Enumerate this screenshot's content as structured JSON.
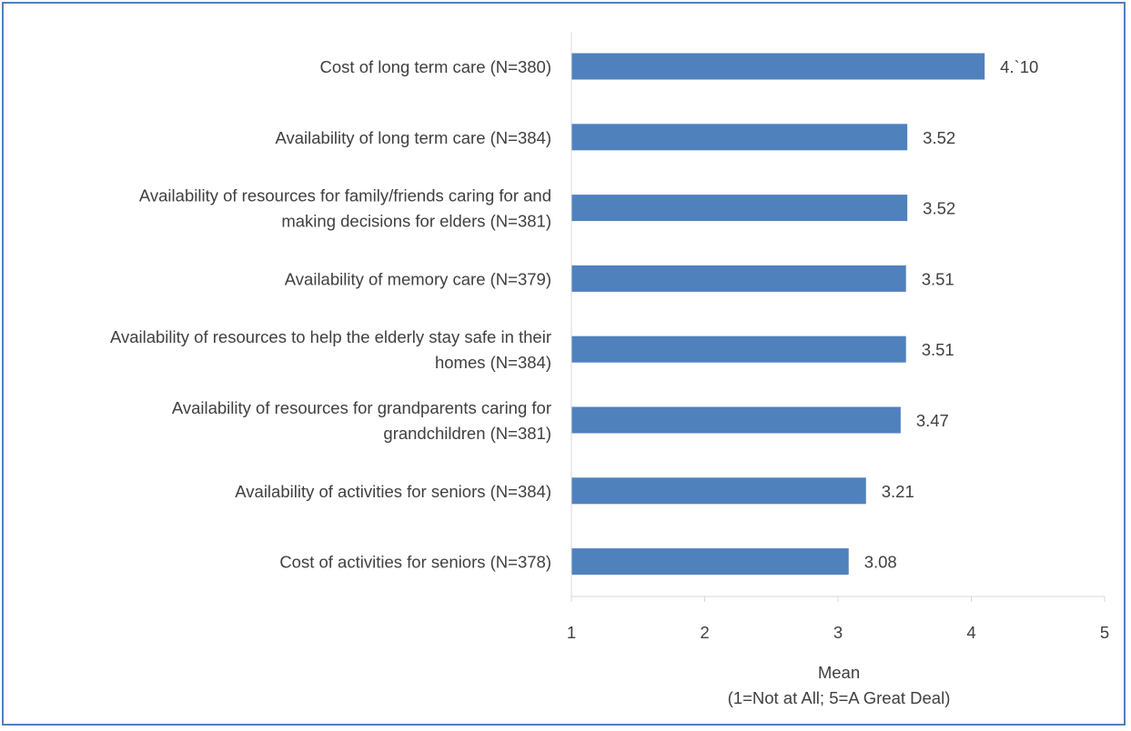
{
  "chart_data": {
    "type": "bar",
    "orientation": "horizontal",
    "categories": [
      [
        "Cost of long term care (N=380)"
      ],
      [
        "Availability of long term care (N=384)"
      ],
      [
        "Availability of resources for family/friends caring for and",
        "making decisions for elders (N=381)"
      ],
      [
        "Availability of memory care (N=379)"
      ],
      [
        "Availability of resources to help the elderly stay safe in their",
        "homes (N=384)"
      ],
      [
        "Availability of resources for grandparents caring for",
        "grandchildren (N=381)"
      ],
      [
        "Availability of activities for seniors (N=384)"
      ],
      [
        "Cost of activities for seniors (N=378)"
      ]
    ],
    "values": [
      4.1,
      3.52,
      3.52,
      3.51,
      3.51,
      3.47,
      3.21,
      3.08
    ],
    "data_labels": [
      "4.`10",
      "3.52",
      "3.52",
      "3.51",
      "3.51",
      "3.47",
      "3.21",
      "3.08"
    ],
    "xlim": [
      1,
      5
    ],
    "xticks": [
      "1",
      "2",
      "3",
      "4",
      "5"
    ],
    "xlabel": [
      "Mean",
      "(1=Not at All; 5=A Great Deal)"
    ],
    "bar_color": "#4f81bd",
    "axis_color": "#d9d9d9",
    "grid": false,
    "legend": "none"
  }
}
